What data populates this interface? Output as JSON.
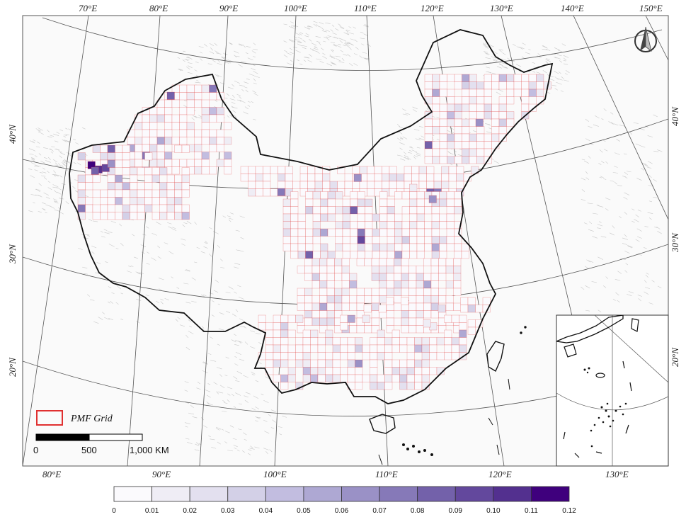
{
  "map": {
    "top_lon_labels": [
      "70°E",
      "80°E",
      "90°E",
      "100°E",
      "110°E",
      "120°E",
      "130°E",
      "140°E",
      "150°E"
    ],
    "bottom_lon_labels": [
      "80°E",
      "90°E",
      "100°E",
      "110°E",
      "120°E"
    ],
    "left_lat_labels": [
      "40°N",
      "30°N",
      "20°N"
    ],
    "right_lat_labels": [
      "40°N",
      "30°N",
      "20°N"
    ],
    "inset_lon_label": "130°E",
    "north_arrow": "north-arrow-icon"
  },
  "legend": {
    "grid_label": "PMF Grid",
    "grid_color": "#e03030"
  },
  "scale_bar": {
    "labels": [
      "0",
      "500",
      "1,000 KM"
    ]
  },
  "colorbar": {
    "ticks": [
      "0",
      "0.01",
      "0.02",
      "0.03",
      "0.04",
      "0.05",
      "0.06",
      "0.07",
      "0.08",
      "0.09",
      "0.10",
      "0.11",
      "0.12"
    ],
    "colors": [
      "#fbfafd",
      "#efedf5",
      "#e3e0ef",
      "#d3d0e7",
      "#c2bde0",
      "#aea8d3",
      "#9a91c6",
      "#8679b8",
      "#7361aa",
      "#63489d",
      "#53308f",
      "#3f007d"
    ]
  }
}
